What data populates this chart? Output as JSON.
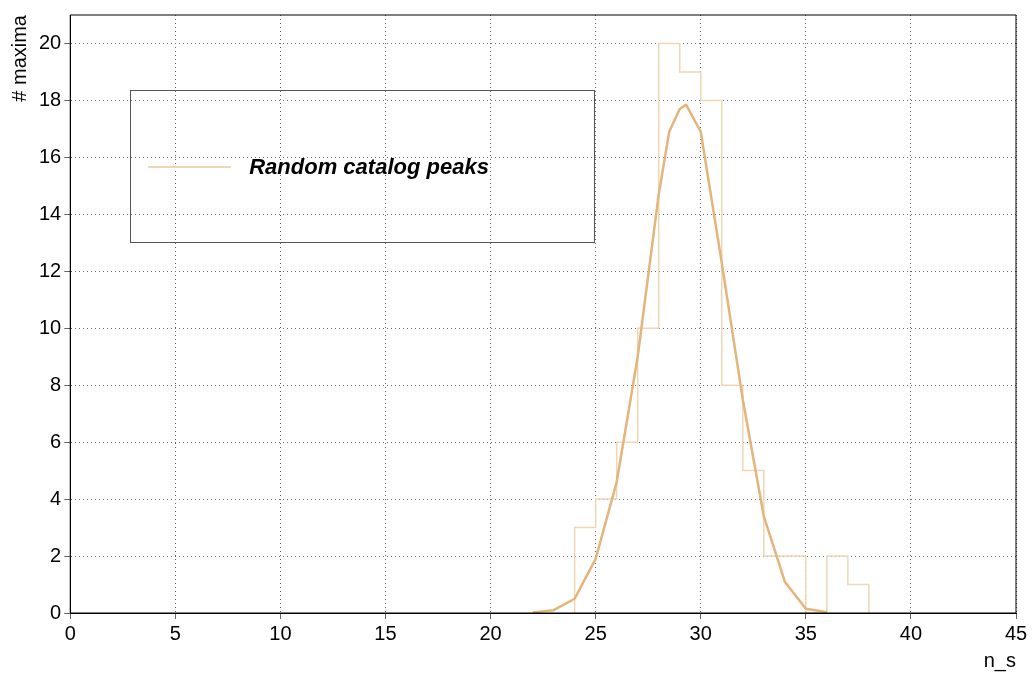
{
  "chart_data": {
    "type": "histogram",
    "xlabel": "n_s",
    "ylabel": "# maxima",
    "xlim": [
      0,
      45
    ],
    "xticks": [
      0,
      5,
      10,
      15,
      20,
      25,
      30,
      35,
      40,
      45
    ],
    "ylim": [
      0,
      21
    ],
    "yticks": [
      0,
      2,
      4,
      6,
      8,
      10,
      12,
      14,
      16,
      18,
      20
    ],
    "grid": true,
    "legend": "top left",
    "series": [
      {
        "name": "Random catalog peaks",
        "color": "#efd7b5",
        "bins": [
          24,
          25,
          26,
          27,
          28,
          29,
          30,
          31,
          32,
          33,
          34,
          35,
          36,
          37,
          38
        ],
        "values": [
          3,
          4,
          6,
          10,
          20,
          19,
          18,
          8,
          5,
          2,
          2,
          0,
          2,
          1
        ]
      },
      {
        "type": "line",
        "color": "#e3b47c",
        "x": [
          22,
          23,
          24,
          25,
          26,
          27,
          28,
          28.5,
          29,
          29.3,
          30,
          31,
          32,
          33,
          34,
          35,
          36
        ],
        "values": [
          0.02,
          0.1,
          0.5,
          1.9,
          4.6,
          9.0,
          14.7,
          16.9,
          17.7,
          17.85,
          16.9,
          12.3,
          7.5,
          3.4,
          1.1,
          0.15,
          0.03
        ]
      }
    ]
  }
}
